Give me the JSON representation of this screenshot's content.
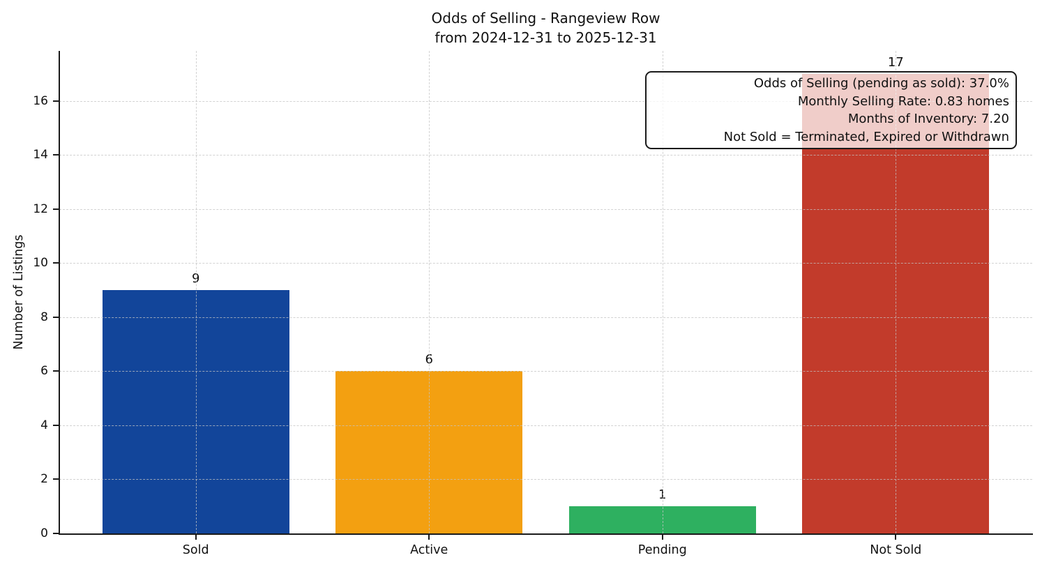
{
  "chart_data": {
    "type": "bar",
    "title": "Odds of Selling - Rangeview Row",
    "subtitle": "from 2024-12-31 to 2025-12-31",
    "categories": [
      "Sold",
      "Active",
      "Pending",
      "Not Sold"
    ],
    "values": [
      9,
      6,
      1,
      17
    ],
    "bar_colors": [
      "#12459a",
      "#f3a011",
      "#2eb060",
      "#c23b2b"
    ],
    "xlabel": "",
    "ylabel": "Number of Listings",
    "ylim": [
      0,
      17.85
    ],
    "yticks": [
      0,
      2,
      4,
      6,
      8,
      10,
      12,
      14,
      16
    ],
    "grid": true,
    "legend": null,
    "annotation": {
      "lines": [
        "Odds of Selling (pending as sold): 37.0%",
        "Monthly Selling Rate: 0.83 homes",
        "Months of Inventory: 7.20",
        "Not Sold = Terminated, Expired or Withdrawn"
      ]
    }
  }
}
